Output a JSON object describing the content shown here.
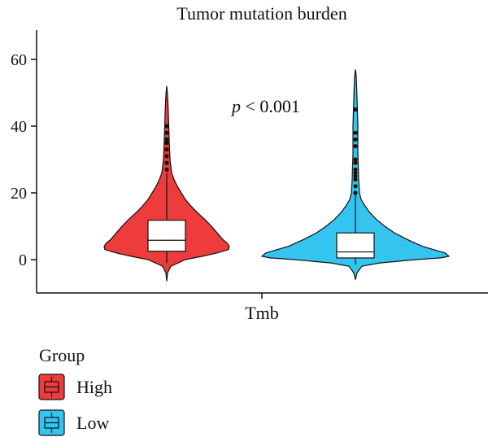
{
  "chart_data": {
    "type": "violin",
    "title": "Tumor mutation burden",
    "xlabel": "",
    "ylabel": "",
    "x_category": "Tmb",
    "ylim": [
      -10,
      68
    ],
    "yticks": [
      0,
      20,
      40,
      60
    ],
    "annotation": "p < 0.001",
    "annotation_italic_part": "p",
    "annotation_rest": " < 0.001",
    "legend": {
      "title": "Group",
      "position": "bottom-left"
    },
    "grid": false,
    "series": [
      {
        "name": "High",
        "color": "#EE3B3B",
        "min": -6.5,
        "max": 52,
        "box": {
          "q1": 2.5,
          "median": 5.8,
          "q3": 11.8,
          "whisker_low": -1.0,
          "whisker_high": 26.0
        },
        "outliers": [
          27,
          29,
          31,
          33,
          35,
          36,
          38,
          40
        ],
        "density": [
          [
            -6.5,
            0.0
          ],
          [
            -4,
            1
          ],
          [
            -2,
            5
          ],
          [
            0,
            23
          ],
          [
            1,
            44
          ],
          [
            2,
            62
          ],
          [
            3,
            76
          ],
          [
            4,
            77
          ],
          [
            5,
            74
          ],
          [
            6,
            69
          ],
          [
            8,
            62
          ],
          [
            10,
            55
          ],
          [
            12,
            47
          ],
          [
            14,
            38
          ],
          [
            16,
            30
          ],
          [
            18,
            23
          ],
          [
            20,
            18
          ],
          [
            22,
            13
          ],
          [
            24,
            9
          ],
          [
            26,
            6
          ],
          [
            28,
            5
          ],
          [
            30,
            4
          ],
          [
            33,
            3.5
          ],
          [
            36,
            3
          ],
          [
            40,
            2.5
          ],
          [
            44,
            2
          ],
          [
            48,
            1.3
          ],
          [
            50,
            0.8
          ],
          [
            52,
            0
          ]
        ]
      },
      {
        "name": "Low",
        "color": "#33C5F0",
        "min": -6,
        "max": 57,
        "box": {
          "q1": 0.5,
          "median": 2.3,
          "q3": 8.0,
          "whisker_low": -1.5,
          "whisker_high": 20.0
        },
        "outliers": [
          20,
          22,
          24,
          25,
          26,
          27,
          29,
          30,
          34,
          36,
          38,
          45
        ],
        "density": [
          [
            -6,
            0
          ],
          [
            -4,
            2
          ],
          [
            -2,
            8
          ],
          [
            -1,
            30
          ],
          [
            0,
            75
          ],
          [
            0.5,
            105
          ],
          [
            1,
            115
          ],
          [
            2,
            110
          ],
          [
            3,
            96
          ],
          [
            4,
            82
          ],
          [
            6,
            64
          ],
          [
            8,
            48
          ],
          [
            10,
            36
          ],
          [
            12,
            26
          ],
          [
            14,
            18
          ],
          [
            16,
            12
          ],
          [
            18,
            7
          ],
          [
            20,
            5
          ],
          [
            24,
            4
          ],
          [
            28,
            3.5
          ],
          [
            32,
            3
          ],
          [
            36,
            3
          ],
          [
            40,
            3
          ],
          [
            44,
            2.5
          ],
          [
            48,
            2
          ],
          [
            52,
            1.5
          ],
          [
            55,
            1
          ],
          [
            57,
            0
          ]
        ]
      }
    ]
  }
}
